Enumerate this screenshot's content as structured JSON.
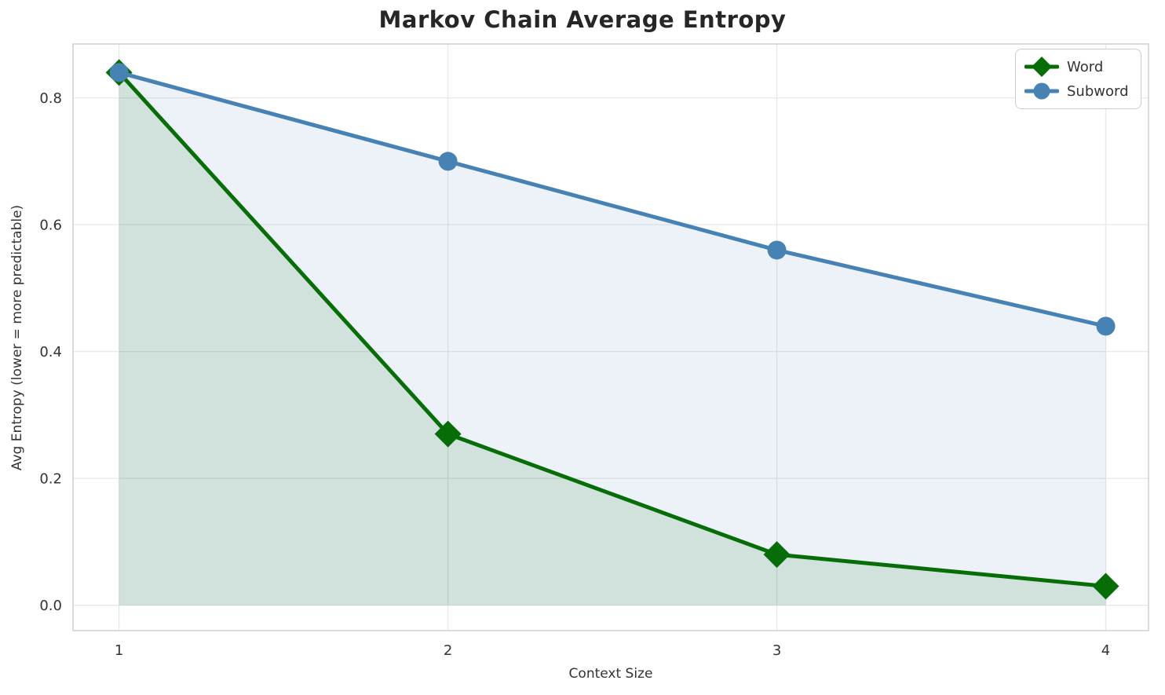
{
  "chart_data": {
    "type": "line",
    "title": "Markov Chain Average Entropy",
    "xlabel": "Context Size",
    "ylabel": "Avg Entropy (lower = more predictable)",
    "x": [
      1,
      2,
      3,
      4
    ],
    "series": [
      {
        "name": "Word",
        "marker": "diamond",
        "color": "#076d07",
        "fill_alpha": 0.12,
        "values": [
          0.84,
          0.27,
          0.08,
          0.03
        ]
      },
      {
        "name": "Subword",
        "marker": "circle",
        "color": "#4682b4",
        "fill_alpha": 0.1,
        "values": [
          0.84,
          0.7,
          0.56,
          0.44
        ]
      }
    ],
    "xticks": [
      1,
      2,
      3,
      4
    ],
    "yticks": [
      0.0,
      0.2,
      0.4,
      0.6,
      0.8
    ],
    "xlim": [
      0.86,
      4.13
    ],
    "ylim": [
      -0.04,
      0.885
    ],
    "grid": true,
    "area_fill_baseline": 0,
    "legend_position": "upper right",
    "colors": {
      "grid": "#e8e8e8",
      "spine": "#cfcfcf",
      "tick_text": "#333333",
      "title_text": "#262626",
      "background": "#ffffff"
    }
  }
}
